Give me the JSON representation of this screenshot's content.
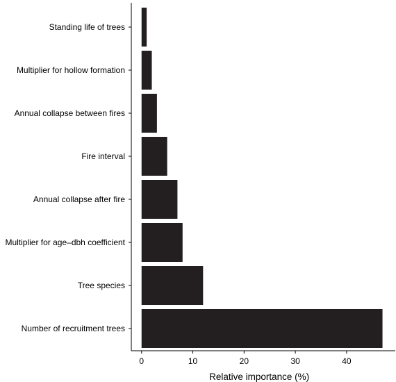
{
  "chart_data": {
    "type": "bar",
    "orientation": "horizontal",
    "categories": [
      "Standing life of trees",
      "Multiplier for hollow formation",
      "Annual collapse between fires",
      "Fire interval",
      "Annual collapse after fire",
      "Multiplier for age–dbh coefficient",
      "Tree species",
      "Number of recruitment trees"
    ],
    "values": [
      1,
      2,
      3,
      5,
      7,
      8,
      12,
      47
    ],
    "title": "",
    "xlabel": "Relative importance (%)",
    "ylabel": "",
    "xlim": [
      -2,
      49.5
    ],
    "xticks": [
      0,
      10,
      20,
      30,
      40
    ],
    "grid": false,
    "bar_color": "#231f20",
    "axis_color": "#000000"
  }
}
